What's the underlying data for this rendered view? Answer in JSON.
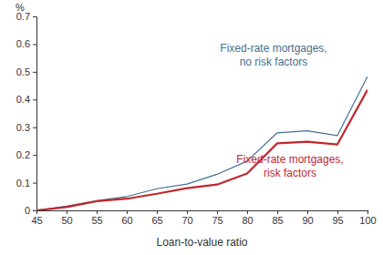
{
  "chart_data": {
    "type": "line",
    "ylabel": "%",
    "xlabel": "Loan-to-value ratio",
    "x": [
      45,
      50,
      55,
      60,
      65,
      70,
      75,
      80,
      85,
      90,
      95,
      100
    ],
    "series": [
      {
        "name": "Fixed-rate mortgages, no risk factors",
        "color": "#46708f",
        "values": [
          0,
          0.015,
          0.035,
          0.05,
          0.078,
          0.095,
          0.13,
          0.178,
          0.28,
          0.287,
          0.27,
          0.483
        ]
      },
      {
        "name": "Fixed-rate mortgages, risk factors",
        "color": "#c0282d",
        "values": [
          0,
          0.012,
          0.033,
          0.042,
          0.06,
          0.08,
          0.093,
          0.133,
          0.242,
          0.248,
          0.238,
          0.435
        ]
      }
    ],
    "xlim": [
      45,
      100
    ],
    "xticks": [
      45,
      50,
      55,
      60,
      65,
      70,
      75,
      80,
      85,
      90,
      95,
      100
    ],
    "ylim": [
      0,
      0.7
    ],
    "yticks": [
      0,
      0.1,
      0.2,
      0.3,
      0.4,
      0.5,
      0.6,
      0.7
    ],
    "grid": false
  }
}
